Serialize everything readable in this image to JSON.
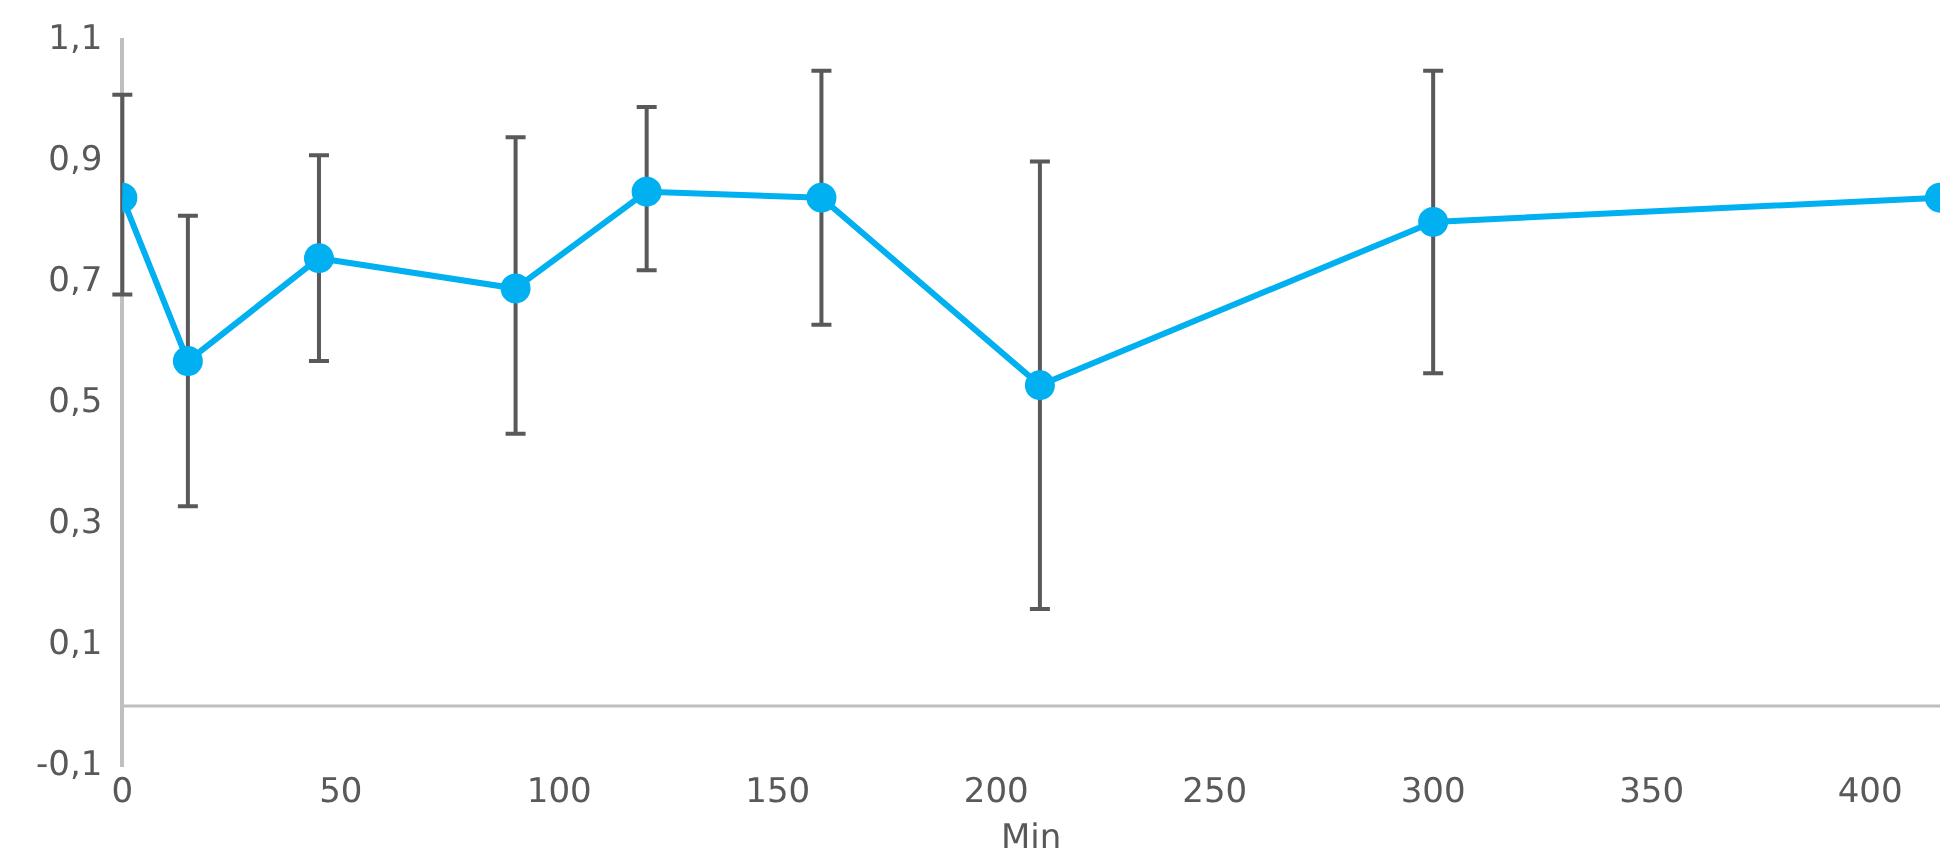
{
  "chart_data": {
    "type": "line",
    "xlabel": "Min",
    "x": [
      0,
      15,
      45,
      90,
      120,
      160,
      210,
      300,
      416
    ],
    "series": [
      {
        "color": "#00b0f0",
        "values": [
          0.84,
          0.57,
          0.74,
          0.69,
          0.85,
          0.84,
          0.53,
          0.8,
          0.84
        ],
        "errors": [
          [
            0.68,
            1.01
          ],
          [
            0.33,
            0.81
          ],
          [
            0.57,
            0.91
          ],
          [
            0.45,
            0.94
          ],
          [
            0.72,
            0.99
          ],
          [
            0.63,
            1.05
          ],
          [
            0.16,
            0.9
          ],
          [
            0.55,
            1.05
          ],
          null
        ]
      }
    ],
    "xlim": [
      0,
      416
    ],
    "xticks": [
      0,
      50,
      100,
      150,
      200,
      250,
      300,
      350,
      400
    ],
    "ylim": [
      -0.1,
      1.1
    ],
    "yticks": [
      {
        "value": -0.1,
        "label": "-0,1"
      },
      {
        "value": 0.1,
        "label": "0,1"
      },
      {
        "value": 0.3,
        "label": "0,3"
      },
      {
        "value": 0.5,
        "label": "0,5"
      },
      {
        "value": 0.7,
        "label": "0,7"
      },
      {
        "value": 0.9,
        "label": "0,9"
      },
      {
        "value": 1.1,
        "label": "1,1"
      }
    ],
    "grid": false,
    "legend": false,
    "marker": "circle",
    "line_style": "solid"
  }
}
